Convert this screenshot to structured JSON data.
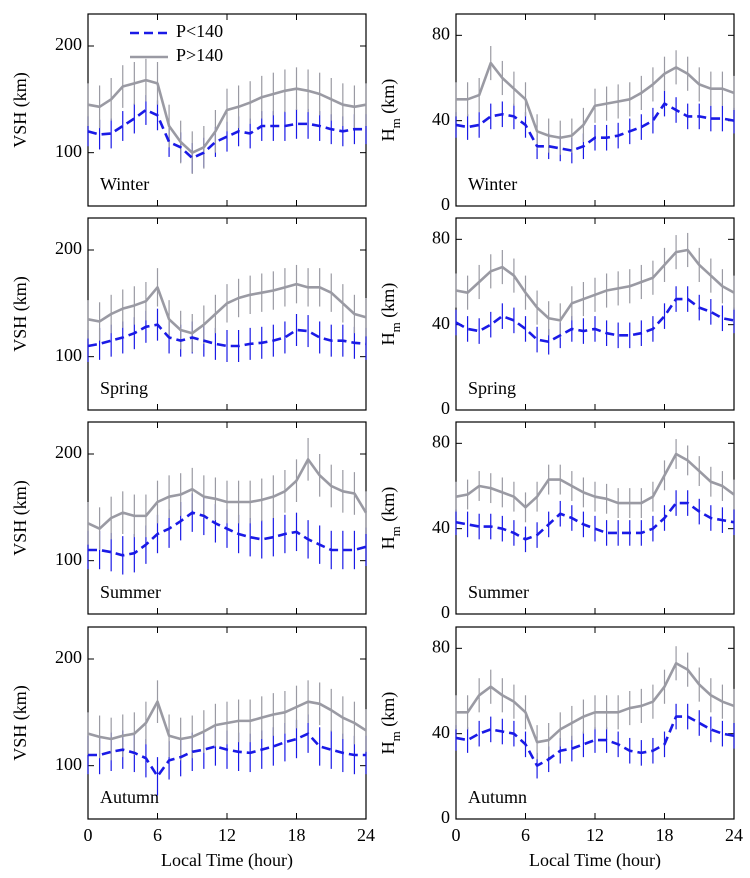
{
  "chart_data": [
    {
      "type": "line",
      "annotation": "Winter",
      "ylabel": [
        {
          "text": "VSH (km)"
        }
      ],
      "legend": true,
      "x": [
        0,
        1,
        2,
        3,
        4,
        5,
        6,
        7,
        8,
        9,
        10,
        11,
        12,
        13,
        14,
        15,
        16,
        17,
        18,
        19,
        20,
        21,
        22,
        23,
        24
      ],
      "xlim": [
        0,
        24
      ],
      "xticks": [
        0,
        6,
        12,
        18,
        24
      ],
      "ylim": [
        50,
        230
      ],
      "yticks": [
        100,
        200
      ],
      "series": [
        {
          "name": "P<140",
          "color": "#1a1ae6",
          "dashed": true,
          "error": 14,
          "values": [
            120,
            117,
            118,
            125,
            132,
            140,
            135,
            110,
            105,
            95,
            100,
            110,
            115,
            120,
            118,
            125,
            125,
            125,
            127,
            127,
            125,
            122,
            120,
            122,
            122
          ]
        },
        {
          "name": "P>140",
          "color": "#9a9aa3",
          "dashed": false,
          "error": 20,
          "values": [
            145,
            143,
            150,
            162,
            165,
            168,
            165,
            125,
            110,
            100,
            105,
            120,
            140,
            143,
            147,
            152,
            155,
            158,
            160,
            158,
            155,
            150,
            145,
            143,
            145
          ]
        }
      ]
    },
    {
      "type": "line",
      "annotation": "Winter",
      "ylabel": [
        {
          "text": "H"
        },
        {
          "text": "m",
          "sub": true
        },
        {
          "text": " (km)"
        }
      ],
      "x": [
        0,
        1,
        2,
        3,
        4,
        5,
        6,
        7,
        8,
        9,
        10,
        11,
        12,
        13,
        14,
        15,
        16,
        17,
        18,
        19,
        20,
        21,
        22,
        23,
        24
      ],
      "xlim": [
        0,
        24
      ],
      "xticks": [
        0,
        6,
        12,
        18,
        24
      ],
      "ylim": [
        0,
        90
      ],
      "yticks": [
        0,
        40,
        80
      ],
      "series": [
        {
          "color": "#1a1ae6",
          "dashed": true,
          "error": 6,
          "values": [
            38,
            37,
            38,
            42,
            43,
            42,
            38,
            28,
            28,
            27,
            26,
            28,
            32,
            32,
            33,
            35,
            37,
            40,
            48,
            45,
            42,
            42,
            41,
            41,
            40
          ]
        },
        {
          "color": "#9a9aa3",
          "dashed": false,
          "error": 8,
          "values": [
            50,
            50,
            52,
            67,
            60,
            55,
            50,
            35,
            33,
            32,
            33,
            38,
            47,
            48,
            49,
            50,
            53,
            57,
            62,
            65,
            62,
            57,
            55,
            55,
            53
          ]
        }
      ]
    },
    {
      "type": "line",
      "annotation": "Spring",
      "ylabel": [
        {
          "text": "VSH (km)"
        }
      ],
      "x": [
        0,
        1,
        2,
        3,
        4,
        5,
        6,
        7,
        8,
        9,
        10,
        11,
        12,
        13,
        14,
        15,
        16,
        17,
        18,
        19,
        20,
        21,
        22,
        23,
        24
      ],
      "xlim": [
        0,
        24
      ],
      "xticks": [
        0,
        6,
        12,
        18,
        24
      ],
      "ylim": [
        50,
        230
      ],
      "yticks": [
        100,
        200
      ],
      "series": [
        {
          "color": "#1a1ae6",
          "dashed": true,
          "error": 15,
          "values": [
            110,
            112,
            115,
            118,
            122,
            128,
            130,
            118,
            115,
            118,
            115,
            112,
            110,
            110,
            112,
            113,
            115,
            118,
            125,
            124,
            118,
            115,
            115,
            113,
            112
          ]
        },
        {
          "color": "#9a9aa3",
          "dashed": false,
          "error": 18,
          "values": [
            135,
            133,
            140,
            145,
            148,
            152,
            165,
            135,
            125,
            122,
            130,
            140,
            150,
            155,
            158,
            160,
            162,
            165,
            168,
            165,
            165,
            160,
            150,
            140,
            137
          ]
        }
      ]
    },
    {
      "type": "line",
      "annotation": "Spring",
      "ylabel": [
        {
          "text": "H"
        },
        {
          "text": "m",
          "sub": true
        },
        {
          "text": " (km)"
        }
      ],
      "x": [
        0,
        1,
        2,
        3,
        4,
        5,
        6,
        7,
        8,
        9,
        10,
        11,
        12,
        13,
        14,
        15,
        16,
        17,
        18,
        19,
        20,
        21,
        22,
        23,
        24
      ],
      "xlim": [
        0,
        24
      ],
      "xticks": [
        0,
        6,
        12,
        18,
        24
      ],
      "ylim": [
        0,
        90
      ],
      "yticks": [
        0,
        40,
        80
      ],
      "series": [
        {
          "color": "#1a1ae6",
          "dashed": true,
          "error": 6,
          "values": [
            41,
            38,
            37,
            40,
            44,
            42,
            38,
            33,
            32,
            35,
            38,
            37,
            38,
            36,
            35,
            35,
            36,
            38,
            44,
            52,
            52,
            48,
            46,
            43,
            42
          ]
        },
        {
          "color": "#9a9aa3",
          "dashed": false,
          "error": 8,
          "values": [
            56,
            55,
            60,
            65,
            67,
            63,
            55,
            48,
            43,
            42,
            50,
            52,
            54,
            56,
            57,
            58,
            60,
            62,
            68,
            74,
            75,
            68,
            63,
            58,
            55
          ]
        }
      ]
    },
    {
      "type": "line",
      "annotation": "Summer",
      "ylabel": [
        {
          "text": "VSH (km)"
        }
      ],
      "x": [
        0,
        1,
        2,
        3,
        4,
        5,
        6,
        7,
        8,
        9,
        10,
        11,
        12,
        13,
        14,
        15,
        16,
        17,
        18,
        19,
        20,
        21,
        22,
        23,
        24
      ],
      "xlim": [
        0,
        24
      ],
      "xticks": [
        0,
        6,
        12,
        18,
        24
      ],
      "ylim": [
        50,
        230
      ],
      "yticks": [
        100,
        200
      ],
      "series": [
        {
          "color": "#1a1ae6",
          "dashed": true,
          "error": 18,
          "values": [
            110,
            110,
            108,
            105,
            107,
            115,
            125,
            130,
            137,
            145,
            142,
            135,
            130,
            125,
            122,
            120,
            122,
            125,
            127,
            120,
            115,
            110,
            110,
            110,
            113
          ]
        },
        {
          "color": "#9a9aa3",
          "dashed": false,
          "error": 20,
          "values": [
            135,
            130,
            140,
            145,
            142,
            142,
            155,
            160,
            162,
            167,
            160,
            158,
            155,
            155,
            155,
            157,
            160,
            165,
            175,
            195,
            180,
            170,
            165,
            163,
            145
          ]
        }
      ]
    },
    {
      "type": "line",
      "annotation": "Summer",
      "ylabel": [
        {
          "text": "H"
        },
        {
          "text": "m",
          "sub": true
        },
        {
          "text": " (km)"
        }
      ],
      "x": [
        0,
        1,
        2,
        3,
        4,
        5,
        6,
        7,
        8,
        9,
        10,
        11,
        12,
        13,
        14,
        15,
        16,
        17,
        18,
        19,
        20,
        21,
        22,
        23,
        24
      ],
      "xlim": [
        0,
        24
      ],
      "xticks": [
        0,
        6,
        12,
        18,
        24
      ],
      "ylim": [
        0,
        90
      ],
      "yticks": [
        0,
        40,
        80
      ],
      "series": [
        {
          "color": "#1a1ae6",
          "dashed": true,
          "error": 6,
          "values": [
            43,
            42,
            41,
            41,
            40,
            38,
            35,
            37,
            42,
            47,
            45,
            42,
            40,
            38,
            38,
            38,
            38,
            40,
            45,
            52,
            52,
            48,
            45,
            44,
            43
          ]
        },
        {
          "color": "#9a9aa3",
          "dashed": false,
          "error": 7,
          "values": [
            55,
            56,
            60,
            59,
            57,
            55,
            50,
            55,
            63,
            63,
            60,
            57,
            55,
            54,
            52,
            52,
            52,
            55,
            65,
            75,
            72,
            67,
            62,
            60,
            56
          ]
        }
      ]
    },
    {
      "type": "line",
      "annotation": "Autumn",
      "ylabel": [
        {
          "text": "VSH (km)"
        }
      ],
      "xlabel": "Local Time (hour)",
      "xticklabels": true,
      "x": [
        0,
        1,
        2,
        3,
        4,
        5,
        6,
        7,
        8,
        9,
        10,
        11,
        12,
        13,
        14,
        15,
        16,
        17,
        18,
        19,
        20,
        21,
        22,
        23,
        24
      ],
      "xlim": [
        0,
        24
      ],
      "xticks": [
        0,
        6,
        12,
        18,
        24
      ],
      "ylim": [
        50,
        230
      ],
      "yticks": [
        100,
        200
      ],
      "series": [
        {
          "color": "#1a1ae6",
          "dashed": true,
          "error": 18,
          "values": [
            110,
            110,
            113,
            115,
            112,
            107,
            90,
            105,
            108,
            113,
            115,
            118,
            115,
            113,
            112,
            115,
            118,
            122,
            125,
            130,
            118,
            115,
            112,
            110,
            110
          ]
        },
        {
          "color": "#9a9aa3",
          "dashed": false,
          "error": 20,
          "values": [
            130,
            127,
            125,
            128,
            130,
            140,
            160,
            128,
            125,
            127,
            132,
            138,
            140,
            142,
            142,
            145,
            148,
            150,
            155,
            160,
            158,
            152,
            145,
            140,
            133
          ]
        }
      ]
    },
    {
      "type": "line",
      "annotation": "Autumn",
      "ylabel": [
        {
          "text": "H"
        },
        {
          "text": "m",
          "sub": true
        },
        {
          "text": " (km)"
        }
      ],
      "xlabel": "Local Time (hour)",
      "xticklabels": true,
      "x": [
        0,
        1,
        2,
        3,
        4,
        5,
        6,
        7,
        8,
        9,
        10,
        11,
        12,
        13,
        14,
        15,
        16,
        17,
        18,
        19,
        20,
        21,
        22,
        23,
        24
      ],
      "xlim": [
        0,
        24
      ],
      "xticks": [
        0,
        6,
        12,
        18,
        24
      ],
      "ylim": [
        0,
        90
      ],
      "yticks": [
        0,
        40,
        80
      ],
      "series": [
        {
          "color": "#1a1ae6",
          "dashed": true,
          "error": 6,
          "values": [
            38,
            37,
            40,
            42,
            41,
            40,
            35,
            25,
            28,
            32,
            33,
            35,
            37,
            37,
            35,
            32,
            31,
            32,
            35,
            48,
            48,
            45,
            42,
            40,
            39
          ]
        },
        {
          "color": "#9a9aa3",
          "dashed": false,
          "error": 8,
          "values": [
            50,
            50,
            58,
            62,
            58,
            55,
            50,
            36,
            37,
            42,
            45,
            48,
            50,
            50,
            50,
            52,
            53,
            55,
            62,
            73,
            70,
            63,
            58,
            55,
            53
          ]
        }
      ]
    }
  ]
}
